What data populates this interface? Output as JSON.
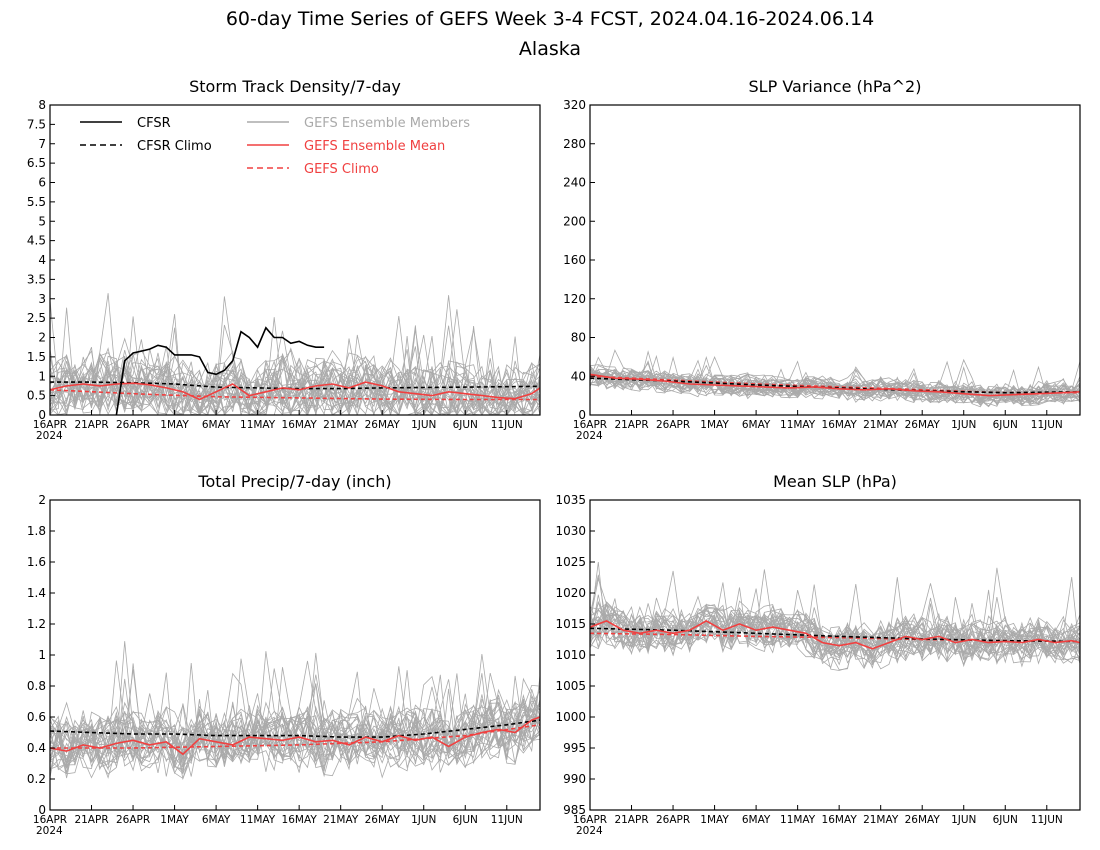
{
  "figure": {
    "title": "60-day Time Series of GEFS Week 3-4 FCST, 2024.04.16-2024.06.14",
    "subtitle": "Alaska"
  },
  "colors": {
    "cfsr": "#000000",
    "members": "#aaaaaa",
    "ensemble_mean": "#f04040",
    "gefs_climo": "#f04040"
  },
  "legend": [
    {
      "label": "CFSR",
      "style": "solid",
      "color": "#000000"
    },
    {
      "label": "CFSR Climo",
      "style": "dashed",
      "color": "#000000"
    },
    {
      "label": "GEFS Ensemble Members",
      "style": "solid",
      "color": "#aaaaaa"
    },
    {
      "label": "GEFS Ensemble Mean",
      "style": "solid",
      "color": "#f04040"
    },
    {
      "label": "GEFS Climo",
      "style": "dashed",
      "color": "#f04040"
    }
  ],
  "chart_data": [
    {
      "type": "line",
      "title": "Storm Track Density/7-day",
      "x_ticks": [
        "16APR",
        "21APR",
        "26APR",
        "1MAY",
        "6MAY",
        "11MAY",
        "16MAY",
        "21MAY",
        "26MAY",
        "1JUN",
        "6JUN",
        "11JUN"
      ],
      "x_year_label": "2024",
      "y_ticks": [
        "0",
        "0.5",
        "1",
        "1.5",
        "2",
        "2.5",
        "3",
        "3.5",
        "4",
        "4.5",
        "5",
        "5.5",
        "6",
        "6.5",
        "7",
        "7.5",
        "8"
      ],
      "ylim": [
        0,
        8
      ],
      "show_legend": true,
      "series": [
        {
          "name": "CFSR",
          "style": "solid",
          "color": "#000000",
          "x": [
            8,
            9,
            10,
            11,
            12,
            13,
            14,
            15,
            16,
            17,
            18,
            19,
            20,
            21,
            22,
            23,
            24,
            25,
            26,
            27,
            28,
            29,
            30,
            31,
            32,
            33
          ],
          "y": [
            0,
            1.4,
            1.6,
            1.65,
            1.7,
            1.8,
            1.75,
            1.55,
            1.55,
            1.55,
            1.5,
            1.1,
            1.05,
            1.15,
            1.4,
            2.15,
            2.0,
            1.75,
            2.25,
            2.0,
            2.0,
            1.85,
            1.9,
            1.8,
            1.75,
            1.75
          ]
        },
        {
          "name": "CFSR Climo",
          "style": "dashed",
          "color": "#000000",
          "x": [
            0,
            5,
            10,
            15,
            20,
            25,
            30,
            35,
            40,
            45,
            50,
            55,
            59
          ],
          "y": [
            0.85,
            0.85,
            0.83,
            0.8,
            0.72,
            0.7,
            0.68,
            0.68,
            0.7,
            0.71,
            0.72,
            0.73,
            0.74
          ]
        },
        {
          "name": "GEFS Ensemble Mean",
          "style": "solid",
          "color": "#f04040",
          "x": [
            0,
            2,
            4,
            6,
            8,
            10,
            12,
            14,
            16,
            18,
            20,
            22,
            24,
            26,
            28,
            30,
            32,
            34,
            36,
            38,
            40,
            42,
            44,
            46,
            48,
            50,
            52,
            54,
            56,
            58,
            59
          ],
          "y": [
            0.65,
            0.75,
            0.8,
            0.75,
            0.8,
            0.82,
            0.78,
            0.7,
            0.6,
            0.4,
            0.6,
            0.8,
            0.5,
            0.6,
            0.7,
            0.65,
            0.75,
            0.8,
            0.7,
            0.85,
            0.75,
            0.6,
            0.55,
            0.5,
            0.6,
            0.55,
            0.5,
            0.45,
            0.42,
            0.55,
            0.7
          ]
        },
        {
          "name": "GEFS Climo",
          "style": "dashed",
          "color": "#f04040",
          "x": [
            0,
            10,
            20,
            30,
            40,
            50,
            59
          ],
          "y": [
            0.65,
            0.55,
            0.47,
            0.44,
            0.41,
            0.4,
            0.4
          ]
        }
      ]
    },
    {
      "type": "line",
      "title": "SLP Variance (hPa^2)",
      "x_ticks": [
        "16APR",
        "21APR",
        "26APR",
        "1MAY",
        "6MAY",
        "11MAY",
        "16MAY",
        "21MAY",
        "26MAY",
        "1JUN",
        "6JUN",
        "11JUN"
      ],
      "x_year_label": "2024",
      "y_ticks": [
        "0",
        "40",
        "80",
        "120",
        "160",
        "200",
        "240",
        "280",
        "320"
      ],
      "ylim": [
        0,
        320
      ],
      "show_legend": false,
      "series": [
        {
          "name": "CFSR Climo",
          "style": "dashed",
          "color": "#000000",
          "x": [
            0,
            10,
            20,
            30,
            40,
            50,
            59
          ],
          "y": [
            38,
            35,
            31,
            28,
            25,
            23,
            24
          ]
        },
        {
          "name": "GEFS Ensemble Mean",
          "style": "solid",
          "color": "#f04040",
          "x": [
            0,
            3,
            6,
            9,
            12,
            15,
            18,
            21,
            24,
            27,
            30,
            33,
            36,
            39,
            42,
            45,
            48,
            51,
            54,
            57,
            59
          ],
          "y": [
            42,
            38,
            37,
            35,
            32,
            31,
            30,
            29,
            28,
            29,
            27,
            26,
            27,
            25,
            24,
            22,
            20,
            21,
            22,
            23,
            24
          ]
        },
        {
          "name": "GEFS Climo",
          "style": "dashed",
          "color": "#f04040",
          "x": [
            0,
            10,
            20,
            30,
            40,
            50,
            59
          ],
          "y": [
            40,
            36,
            32,
            29,
            26,
            23,
            23
          ]
        }
      ]
    },
    {
      "type": "line",
      "title": "Total Precip/7-day (inch)",
      "x_ticks": [
        "16APR",
        "21APR",
        "26APR",
        "1MAY",
        "6MAY",
        "11MAY",
        "16MAY",
        "21MAY",
        "26MAY",
        "1JUN",
        "6JUN",
        "11JUN"
      ],
      "x_year_label": "2024",
      "y_ticks": [
        "0",
        "0.2",
        "0.4",
        "0.6",
        "0.8",
        "1",
        "1.2",
        "1.4",
        "1.6",
        "1.8",
        "2"
      ],
      "ylim": [
        0,
        2
      ],
      "show_legend": false,
      "series": [
        {
          "name": "CFSR Climo",
          "style": "dashed",
          "color": "#000000",
          "x": [
            0,
            5,
            10,
            15,
            20,
            25,
            30,
            35,
            40,
            45,
            50,
            55,
            59
          ],
          "y": [
            0.51,
            0.5,
            0.49,
            0.49,
            0.48,
            0.48,
            0.48,
            0.47,
            0.47,
            0.49,
            0.52,
            0.55,
            0.58
          ]
        },
        {
          "name": "GEFS Ensemble Mean",
          "style": "solid",
          "color": "#f04040",
          "x": [
            0,
            2,
            4,
            6,
            8,
            10,
            12,
            14,
            16,
            18,
            20,
            22,
            24,
            26,
            28,
            30,
            32,
            34,
            36,
            38,
            40,
            42,
            44,
            46,
            48,
            50,
            52,
            54,
            56,
            58,
            59
          ],
          "y": [
            0.4,
            0.38,
            0.42,
            0.4,
            0.43,
            0.45,
            0.42,
            0.44,
            0.36,
            0.46,
            0.44,
            0.42,
            0.47,
            0.46,
            0.45,
            0.47,
            0.44,
            0.45,
            0.42,
            0.47,
            0.44,
            0.48,
            0.45,
            0.47,
            0.41,
            0.47,
            0.5,
            0.52,
            0.5,
            0.58,
            0.6
          ]
        },
        {
          "name": "GEFS Climo",
          "style": "dashed",
          "color": "#f04040",
          "x": [
            0,
            10,
            20,
            30,
            40,
            50,
            59
          ],
          "y": [
            0.4,
            0.4,
            0.41,
            0.42,
            0.44,
            0.48,
            0.55
          ]
        }
      ]
    },
    {
      "type": "line",
      "title": "Mean SLP (hPa)",
      "x_ticks": [
        "16APR",
        "21APR",
        "26APR",
        "1MAY",
        "6MAY",
        "11MAY",
        "16MAY",
        "21MAY",
        "26MAY",
        "1JUN",
        "6JUN",
        "11JUN"
      ],
      "x_year_label": "2024",
      "y_ticks": [
        "985",
        "990",
        "995",
        "1000",
        "1005",
        "1010",
        "1015",
        "1020",
        "1025",
        "1030",
        "1035"
      ],
      "ylim": [
        985,
        1035
      ],
      "show_legend": false,
      "series": [
        {
          "name": "CFSR Climo",
          "style": "dashed",
          "color": "#000000",
          "x": [
            0,
            10,
            20,
            30,
            40,
            50,
            59
          ],
          "y": [
            1014.3,
            1014,
            1013.5,
            1013,
            1012.6,
            1012.3,
            1012.2
          ]
        },
        {
          "name": "GEFS Ensemble Mean",
          "style": "solid",
          "color": "#f04040",
          "x": [
            0,
            2,
            4,
            6,
            8,
            10,
            12,
            14,
            16,
            18,
            20,
            22,
            24,
            26,
            28,
            30,
            32,
            34,
            36,
            38,
            40,
            42,
            44,
            46,
            48,
            50,
            52,
            54,
            56,
            58,
            59
          ],
          "y": [
            1014.5,
            1015.5,
            1014,
            1013.5,
            1014,
            1013.5,
            1014,
            1015.5,
            1014,
            1015,
            1014,
            1014.5,
            1014,
            1013.5,
            1012,
            1011.5,
            1012,
            1011,
            1012,
            1013,
            1012.5,
            1013,
            1012,
            1012.5,
            1012,
            1012.2,
            1012,
            1012.5,
            1012,
            1012.3,
            1012
          ]
        },
        {
          "name": "GEFS Climo",
          "style": "dashed",
          "color": "#f04040",
          "x": [
            0,
            10,
            20,
            30,
            40,
            50,
            59
          ],
          "y": [
            1013.5,
            1013.3,
            1013,
            1012.8,
            1012.5,
            1012.3,
            1012.2
          ]
        }
      ]
    }
  ]
}
